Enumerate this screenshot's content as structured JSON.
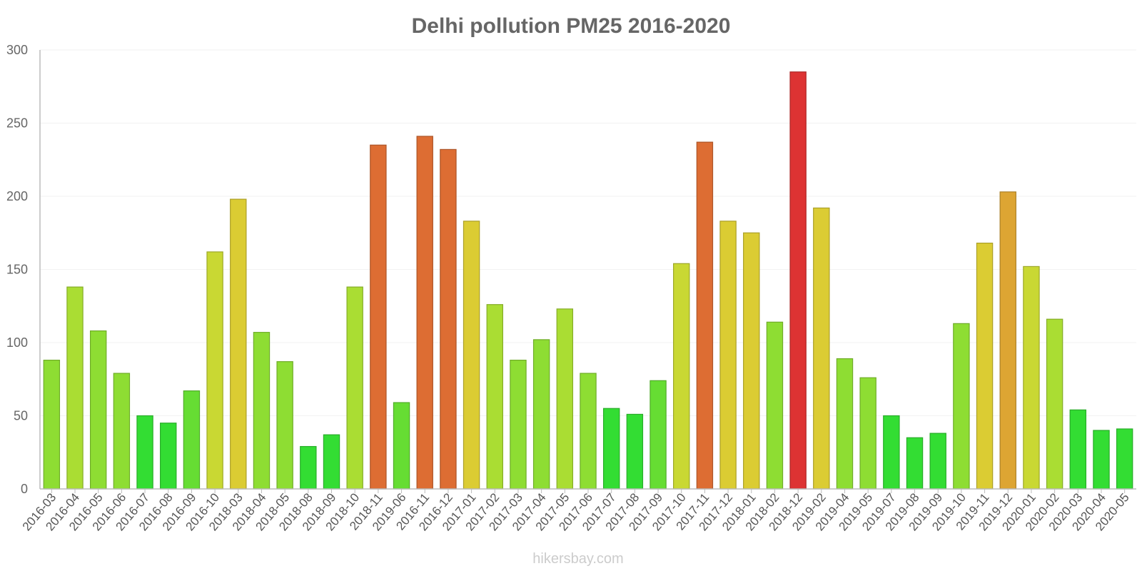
{
  "chart_data": {
    "type": "bar",
    "title": "Delhi pollution PM25 2016-2020",
    "xlabel": "",
    "ylabel": "",
    "ylim": [
      0,
      300
    ],
    "yticks": [
      "0",
      "50",
      "100",
      "150",
      "200",
      "250",
      "300"
    ],
    "grid": true,
    "legend": "none",
    "watermark": "hikersbay.com",
    "categories": [
      "2016-03",
      "2016-04",
      "2016-05",
      "2016-06",
      "2016-07",
      "2016-08",
      "2016-09",
      "2016-10",
      "2018-03",
      "2018-04",
      "2018-05",
      "2018-08",
      "2018-09",
      "2018-10",
      "2018-11",
      "2019-06",
      "2016-11",
      "2016-12",
      "2017-01",
      "2017-02",
      "2017-03",
      "2017-04",
      "2017-05",
      "2017-06",
      "2017-07",
      "2017-08",
      "2017-09",
      "2017-10",
      "2017-11",
      "2017-12",
      "2018-01",
      "2018-02",
      "2018-12",
      "2019-02",
      "2019-04",
      "2019-05",
      "2019-07",
      "2019-08",
      "2019-09",
      "2019-10",
      "2019-11",
      "2019-12",
      "2020-01",
      "2020-02",
      "2020-03",
      "2020-04",
      "2020-05"
    ],
    "values": [
      88,
      138,
      108,
      79,
      50,
      45,
      67,
      162,
      198,
      107,
      87,
      29,
      37,
      138,
      235,
      59,
      241,
      232,
      183,
      126,
      88,
      102,
      123,
      79,
      55,
      51,
      74,
      154,
      237,
      183,
      175,
      114,
      285,
      192,
      89,
      76,
      50,
      35,
      38,
      113,
      168,
      203,
      152,
      116,
      54,
      40,
      41
    ],
    "color_scale": [
      {
        "max": 55,
        "color": "#33dd33"
      },
      {
        "max": 75,
        "color": "#66dd33"
      },
      {
        "max": 115,
        "color": "#8edd33"
      },
      {
        "max": 140,
        "color": "#aadd33"
      },
      {
        "max": 165,
        "color": "#c9d833"
      },
      {
        "max": 200,
        "color": "#dbcc33"
      },
      {
        "max": 225,
        "color": "#dda533"
      },
      {
        "max": 260,
        "color": "#dd6d33"
      },
      {
        "max": 1000,
        "color": "#dd3333"
      }
    ]
  }
}
